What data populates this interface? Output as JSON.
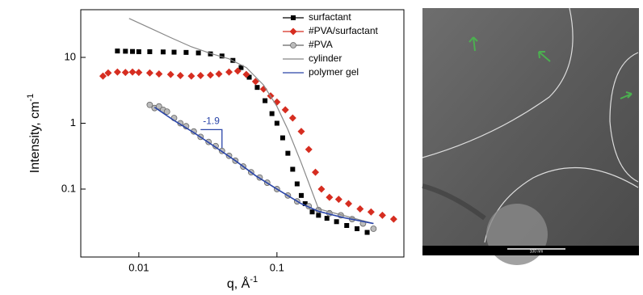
{
  "chart_data": {
    "type": "scatter",
    "x_label": "q, Å",
    "x_label_sup": "-1",
    "y_label": "Intensity, cm",
    "y_label_sup": "-1",
    "log_x": true,
    "log_y": true,
    "xlim": [
      0.0038,
      0.83
    ],
    "ylim": [
      0.0093,
      53
    ],
    "xticks": [
      0.01,
      0.1
    ],
    "yticks": [
      0.1,
      1,
      10
    ],
    "legend": "upper right",
    "annotations": [
      "-1.9"
    ],
    "series": [
      {
        "name": "surfactant",
        "color": "#000000",
        "marker": "square",
        "x": [
          0.007,
          0.008,
          0.009,
          0.01,
          0.012,
          0.015,
          0.018,
          0.022,
          0.027,
          0.033,
          0.04,
          0.048,
          0.055,
          0.063,
          0.072,
          0.082,
          0.092,
          0.1,
          0.11,
          0.12,
          0.13,
          0.14,
          0.15,
          0.16,
          0.18,
          0.2,
          0.23,
          0.27,
          0.32,
          0.38,
          0.45
        ],
        "values": [
          12.5,
          12.4,
          12.3,
          12.2,
          12.2,
          12.1,
          12,
          11.9,
          11.7,
          11.3,
          10.5,
          9,
          7,
          5,
          3.5,
          2.2,
          1.4,
          1,
          0.6,
          0.35,
          0.2,
          0.12,
          0.08,
          0.06,
          0.045,
          0.04,
          0.036,
          0.032,
          0.028,
          0.025,
          0.022
        ]
      },
      {
        "name": "#PVA/surfactant",
        "color": "#d62d20",
        "marker": "diamond",
        "x": [
          0.0055,
          0.006,
          0.007,
          0.008,
          0.009,
          0.01,
          0.012,
          0.014,
          0.017,
          0.02,
          0.024,
          0.028,
          0.033,
          0.038,
          0.045,
          0.052,
          0.06,
          0.07,
          0.08,
          0.09,
          0.1,
          0.115,
          0.13,
          0.15,
          0.17,
          0.19,
          0.21,
          0.24,
          0.28,
          0.33,
          0.4,
          0.48,
          0.58,
          0.7
        ],
        "values": [
          5.2,
          5.8,
          6,
          5.9,
          6,
          5.9,
          5.8,
          5.6,
          5.5,
          5.3,
          5.2,
          5.3,
          5.4,
          5.6,
          6,
          6.2,
          5.5,
          4.3,
          3.3,
          2.6,
          2.1,
          1.6,
          1.2,
          0.75,
          0.4,
          0.18,
          0.1,
          0.075,
          0.07,
          0.06,
          0.05,
          0.045,
          0.04,
          0.035
        ]
      },
      {
        "name": "#PVA",
        "color": "#bbbbbb",
        "marker": "circle",
        "x": [
          0.012,
          0.013,
          0.014,
          0.015,
          0.016,
          0.018,
          0.02,
          0.022,
          0.025,
          0.028,
          0.032,
          0.036,
          0.04,
          0.045,
          0.05,
          0.057,
          0.065,
          0.075,
          0.085,
          0.1,
          0.12,
          0.14,
          0.17,
          0.2,
          0.24,
          0.29,
          0.35,
          0.42,
          0.5
        ],
        "values": [
          1.9,
          1.7,
          1.8,
          1.6,
          1.5,
          1.2,
          1.0,
          0.9,
          0.75,
          0.62,
          0.52,
          0.45,
          0.38,
          0.32,
          0.27,
          0.22,
          0.18,
          0.15,
          0.125,
          0.1,
          0.08,
          0.065,
          0.055,
          0.048,
          0.043,
          0.04,
          0.035,
          0.03,
          0.025
        ]
      },
      {
        "name": "cylinder",
        "color": "#888888",
        "marker": null,
        "x": [
          0.0085,
          0.012,
          0.017,
          0.024,
          0.033,
          0.045,
          0.06,
          0.08,
          0.1,
          0.12,
          0.15,
          0.2,
          0.3,
          0.5
        ],
        "values": [
          39,
          28,
          20,
          14.5,
          11.5,
          9.5,
          7,
          3.8,
          1.8,
          0.8,
          0.25,
          0.05,
          0.04,
          0.03
        ]
      },
      {
        "name": "polymer gel",
        "color": "#2a45a8",
        "marker": null,
        "x": [
          0.013,
          0.018,
          0.025,
          0.035,
          0.05,
          0.07,
          0.1,
          0.15,
          0.2,
          0.3,
          0.5
        ],
        "values": [
          1.75,
          1.1,
          0.72,
          0.45,
          0.27,
          0.16,
          0.1,
          0.06,
          0.046,
          0.037,
          0.03
        ]
      }
    ]
  },
  "image": {
    "scale_bar": "100 nm"
  }
}
